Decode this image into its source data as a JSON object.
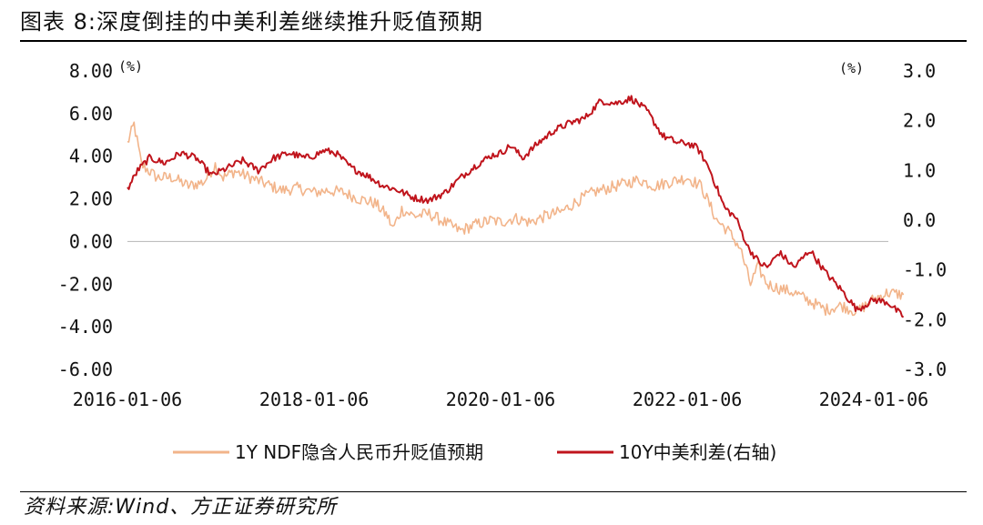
{
  "header": {
    "title": "图表 8:深度倒挂的中美利差继续推升贬值预期"
  },
  "footer": {
    "source": "资料来源:Wind、方正证券研究所"
  },
  "chart_data": {
    "type": "line",
    "left_axis": {
      "unit": "(%)",
      "range": [
        -6,
        8
      ],
      "ticks": [
        "8.00",
        "6.00",
        "4.00",
        "2.00",
        "0.00",
        "-2.00",
        "-4.00",
        "-6.00"
      ]
    },
    "right_axis": {
      "unit": "(%)",
      "range": [
        -3,
        3
      ],
      "ticks": [
        "3.0",
        "2.0",
        "1.0",
        "0.0",
        "-1.0",
        "-2.0",
        "-3.0"
      ]
    },
    "x_axis": {
      "ticks": [
        "2016-01-06",
        "2018-01-06",
        "2020-01-06",
        "2022-01-06",
        "2024-01-06"
      ]
    },
    "series": [
      {
        "name": "1Y NDF隐含人民币升贬值预期",
        "axis": "left",
        "color": "#F2B48A",
        "points": [
          [
            "2016-01-06",
            4.6
          ],
          [
            "2016-02-01",
            5.5
          ],
          [
            "2016-03-01",
            3.6
          ],
          [
            "2016-05-01",
            3.0
          ],
          [
            "2016-07-01",
            3.0
          ],
          [
            "2016-09-01",
            2.6
          ],
          [
            "2016-11-01",
            2.8
          ],
          [
            "2016-12-15",
            3.6
          ],
          [
            "2017-01-15",
            3.0
          ],
          [
            "2017-03-01",
            3.3
          ],
          [
            "2017-05-01",
            3.0
          ],
          [
            "2017-07-01",
            2.7
          ],
          [
            "2017-09-01",
            2.4
          ],
          [
            "2017-11-01",
            2.5
          ],
          [
            "2018-01-06",
            2.3
          ],
          [
            "2018-03-01",
            2.4
          ],
          [
            "2018-05-01",
            2.3
          ],
          [
            "2018-07-01",
            2.0
          ],
          [
            "2018-09-01",
            1.8
          ],
          [
            "2018-10-20",
            1.2
          ],
          [
            "2018-11-10",
            0.6
          ],
          [
            "2018-12-15",
            1.5
          ],
          [
            "2019-02-01",
            1.2
          ],
          [
            "2019-04-01",
            1.3
          ],
          [
            "2019-06-01",
            0.9
          ],
          [
            "2019-08-01",
            0.5
          ],
          [
            "2019-10-01",
            0.8
          ],
          [
            "2019-12-01",
            1.0
          ],
          [
            "2020-01-06",
            0.9
          ],
          [
            "2020-03-01",
            1.1
          ],
          [
            "2020-05-01",
            0.9
          ],
          [
            "2020-07-01",
            1.2
          ],
          [
            "2020-09-01",
            1.4
          ],
          [
            "2020-11-01",
            1.9
          ],
          [
            "2021-01-01",
            2.3
          ],
          [
            "2021-03-01",
            2.5
          ],
          [
            "2021-05-01",
            2.7
          ],
          [
            "2021-07-01",
            2.9
          ],
          [
            "2021-09-01",
            2.6
          ],
          [
            "2021-11-01",
            2.8
          ],
          [
            "2022-01-06",
            3.0
          ],
          [
            "2022-03-01",
            2.6
          ],
          [
            "2022-05-01",
            1.0
          ],
          [
            "2022-06-15",
            0.5
          ],
          [
            "2022-08-01",
            -0.3
          ],
          [
            "2022-09-10",
            -2.0
          ],
          [
            "2022-10-10",
            -1.2
          ],
          [
            "2022-11-15",
            -2.0
          ],
          [
            "2023-01-01",
            -2.2
          ],
          [
            "2023-03-01",
            -2.4
          ],
          [
            "2023-05-01",
            -2.8
          ],
          [
            "2023-07-01",
            -3.2
          ],
          [
            "2023-09-01",
            -3.0
          ],
          [
            "2023-11-01",
            -3.3
          ],
          [
            "2024-01-06",
            -2.7
          ],
          [
            "2024-03-01",
            -2.4
          ],
          [
            "2024-05-01",
            -2.5
          ]
        ]
      },
      {
        "name": "10Y中美利差(右轴)",
        "axis": "right",
        "color": "#C0141C",
        "points": [
          [
            "2016-01-06",
            0.62
          ],
          [
            "2016-02-15",
            1.0
          ],
          [
            "2016-04-01",
            1.25
          ],
          [
            "2016-06-01",
            1.15
          ],
          [
            "2016-08-01",
            1.35
          ],
          [
            "2016-10-01",
            1.25
          ],
          [
            "2016-12-01",
            0.9
          ],
          [
            "2017-02-01",
            1.05
          ],
          [
            "2017-04-01",
            1.2
          ],
          [
            "2017-06-01",
            1.0
          ],
          [
            "2017-08-01",
            1.25
          ],
          [
            "2017-10-01",
            1.35
          ],
          [
            "2017-12-01",
            1.25
          ],
          [
            "2018-01-06",
            1.3
          ],
          [
            "2018-02-15",
            1.4
          ],
          [
            "2018-04-01",
            1.35
          ],
          [
            "2018-06-01",
            1.05
          ],
          [
            "2018-08-01",
            0.9
          ],
          [
            "2018-10-01",
            0.7
          ],
          [
            "2018-12-01",
            0.6
          ],
          [
            "2019-02-01",
            0.45
          ],
          [
            "2019-04-01",
            0.4
          ],
          [
            "2019-06-01",
            0.55
          ],
          [
            "2019-08-01",
            0.85
          ],
          [
            "2019-10-01",
            1.1
          ],
          [
            "2019-12-01",
            1.3
          ],
          [
            "2020-01-06",
            1.35
          ],
          [
            "2020-02-15",
            1.5
          ],
          [
            "2020-04-01",
            1.25
          ],
          [
            "2020-06-01",
            1.55
          ],
          [
            "2020-08-01",
            1.8
          ],
          [
            "2020-10-01",
            1.95
          ],
          [
            "2020-12-01",
            2.05
          ],
          [
            "2021-02-01",
            2.4
          ],
          [
            "2021-04-01",
            2.35
          ],
          [
            "2021-06-01",
            2.45
          ],
          [
            "2021-08-01",
            2.2
          ],
          [
            "2021-10-01",
            1.7
          ],
          [
            "2021-12-01",
            1.55
          ],
          [
            "2022-01-06",
            1.55
          ],
          [
            "2022-02-15",
            1.45
          ],
          [
            "2022-04-01",
            1.05
          ],
          [
            "2022-06-01",
            0.25
          ],
          [
            "2022-07-15",
            0.05
          ],
          [
            "2022-09-01",
            -0.55
          ],
          [
            "2022-10-15",
            -0.85
          ],
          [
            "2022-11-15",
            -0.95
          ],
          [
            "2023-01-01",
            -0.65
          ],
          [
            "2023-03-01",
            -0.95
          ],
          [
            "2023-05-01",
            -0.6
          ],
          [
            "2023-07-01",
            -1.05
          ],
          [
            "2023-09-01",
            -1.4
          ],
          [
            "2023-11-01",
            -1.8
          ],
          [
            "2024-01-06",
            -1.6
          ],
          [
            "2024-03-01",
            -1.65
          ],
          [
            "2024-05-01",
            -1.95
          ]
        ]
      }
    ]
  }
}
